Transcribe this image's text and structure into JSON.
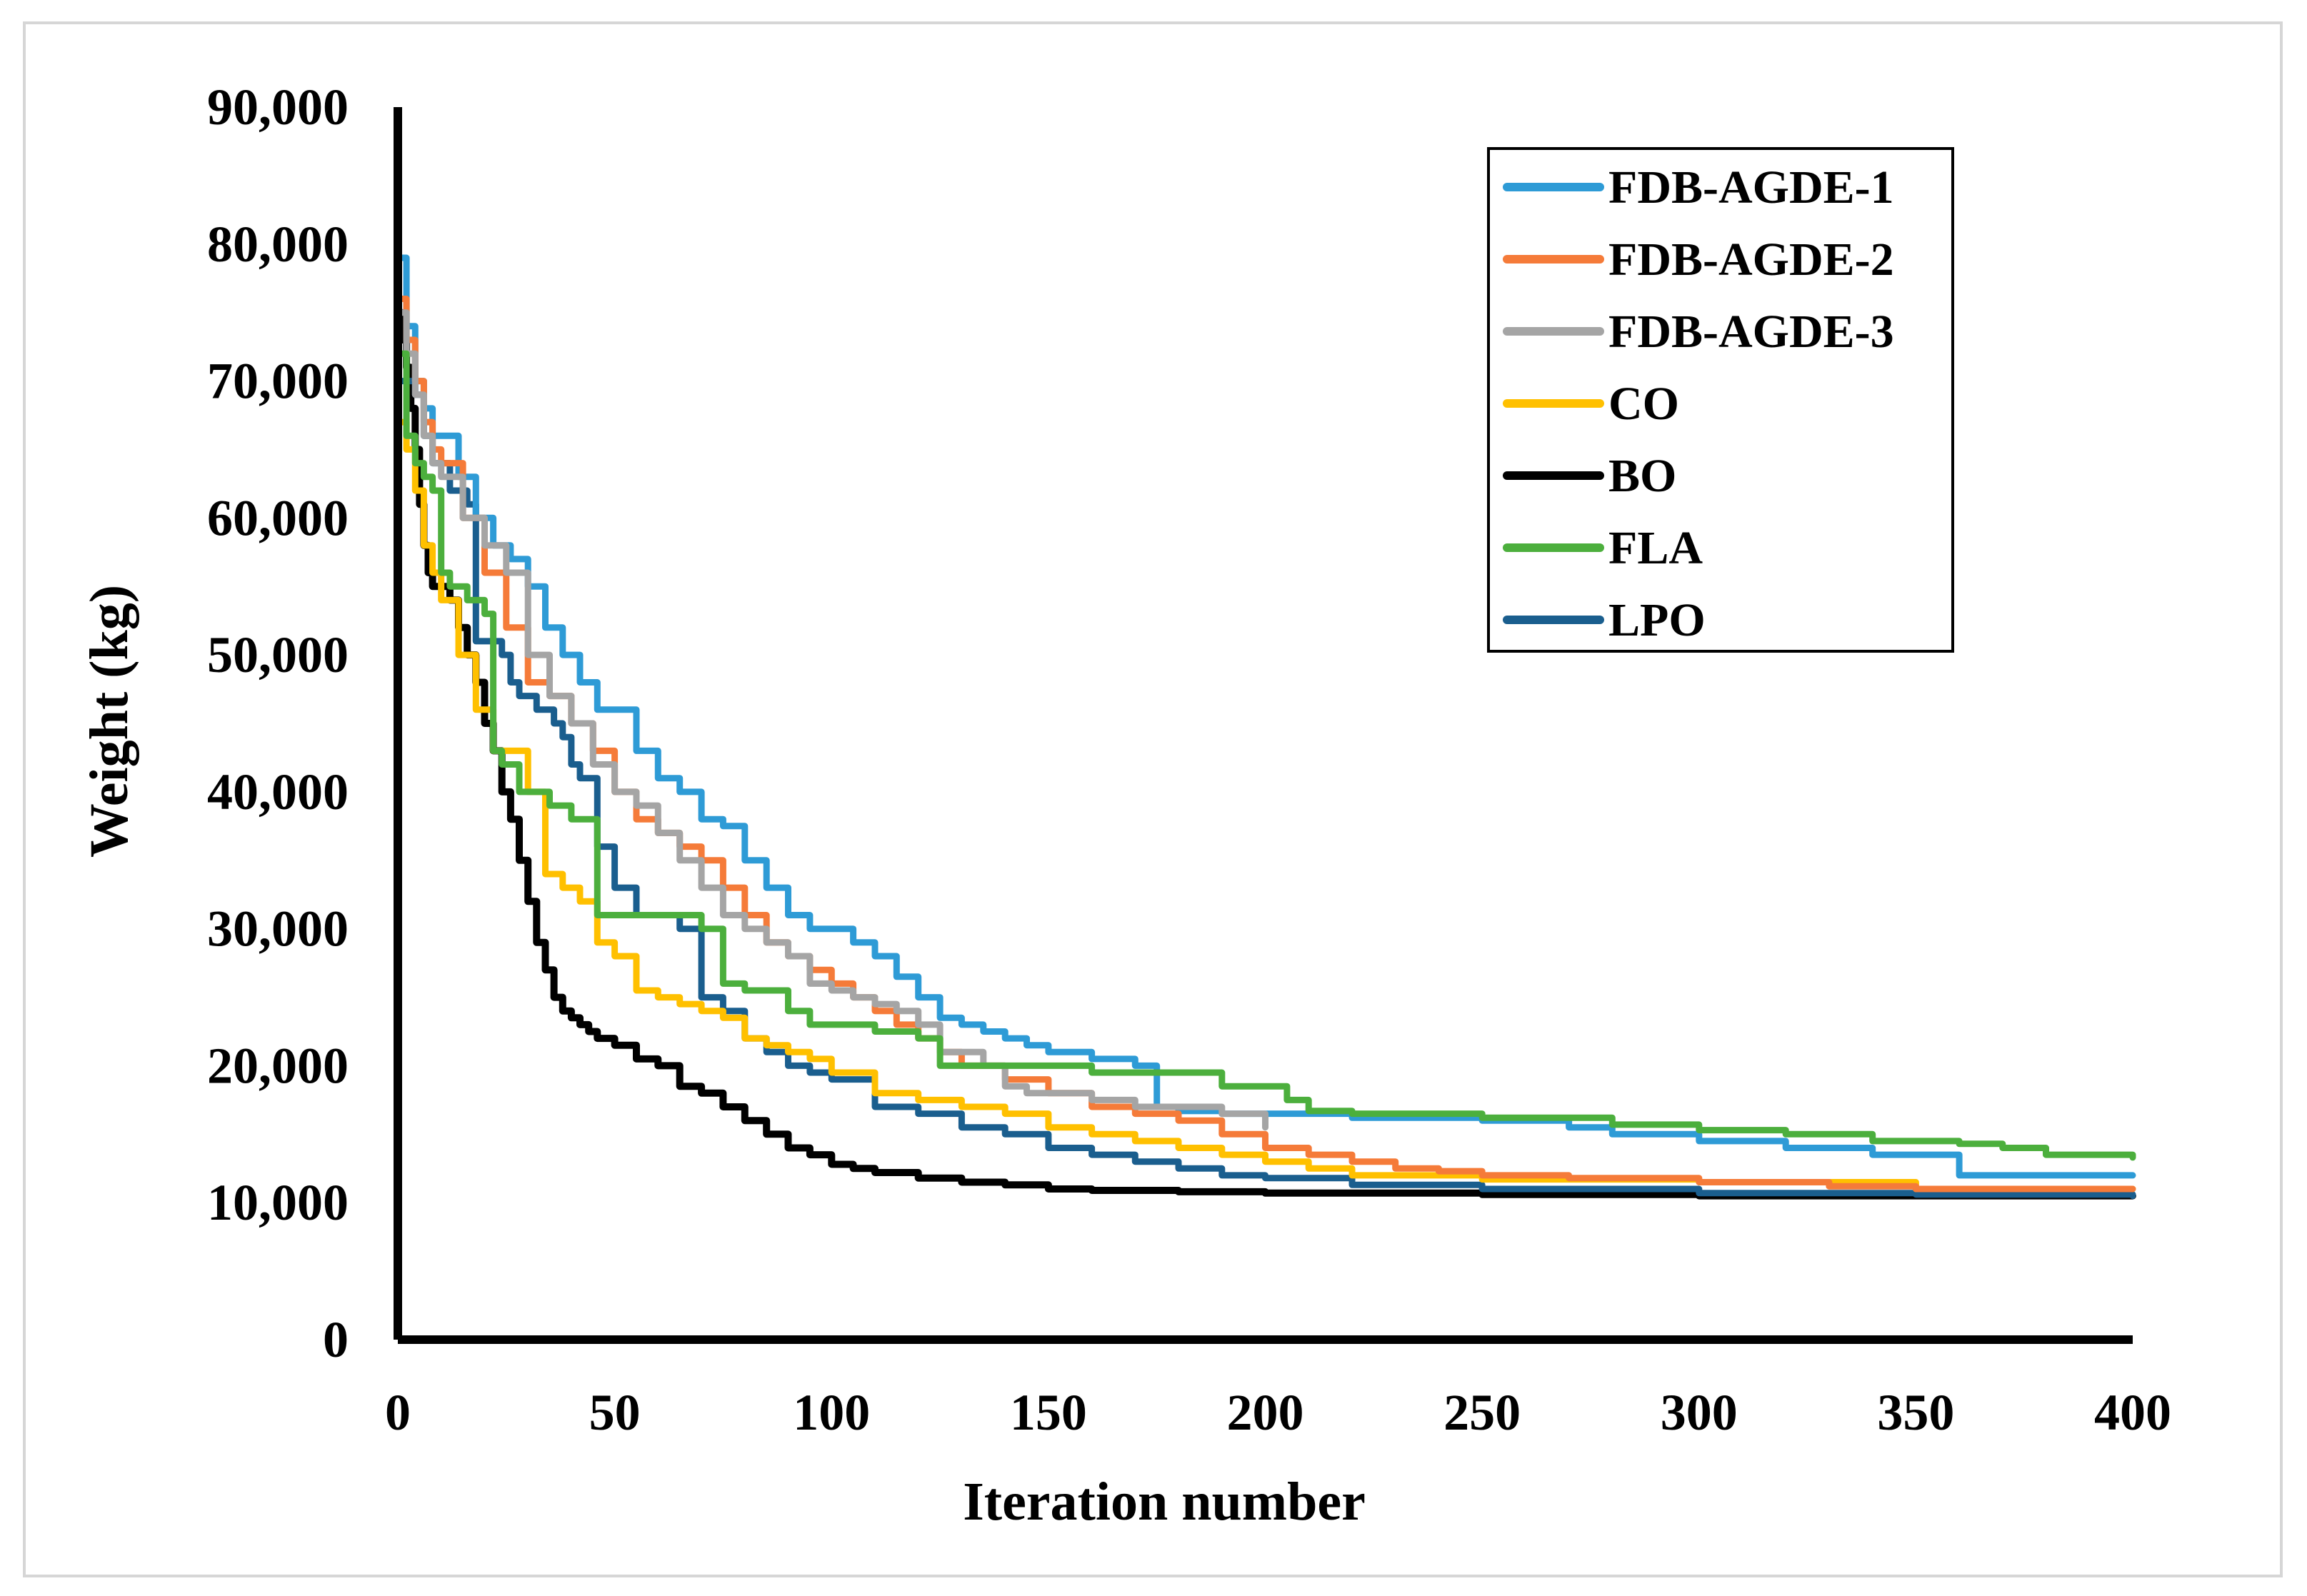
{
  "chart_data": {
    "type": "line",
    "title": "",
    "xlabel": "Iteration number",
    "ylabel": "Weight (kg)",
    "xlim": [
      0,
      400
    ],
    "ylim": [
      0,
      90000
    ],
    "xticks": [
      0,
      50,
      100,
      150,
      200,
      250,
      300,
      350,
      400
    ],
    "yticks": [
      0,
      10000,
      20000,
      30000,
      40000,
      50000,
      60000,
      70000,
      80000,
      90000
    ],
    "xtick_labels": [
      "0",
      "50",
      "100",
      "150",
      "200",
      "250",
      "300",
      "350",
      "400"
    ],
    "ytick_labels": [
      "0",
      "10,000",
      "20,000",
      "30,000",
      "40,000",
      "50,000",
      "60,000",
      "70,000",
      "80,000",
      "90,000"
    ],
    "grid": false,
    "legend_position": "top-right",
    "series": [
      {
        "name": "FDB-AGDE-1",
        "color": "#2E9BD6",
        "x": [
          0,
          2,
          4,
          6,
          8,
          10,
          14,
          18,
          22,
          26,
          30,
          34,
          38,
          42,
          46,
          50,
          55,
          60,
          65,
          70,
          75,
          80,
          85,
          90,
          95,
          100,
          105,
          110,
          115,
          120,
          125,
          130,
          135,
          140,
          145,
          150,
          155,
          160,
          165,
          170,
          175,
          180,
          190,
          200,
          220,
          250,
          270,
          280,
          300,
          320,
          340,
          360,
          380,
          400
        ],
        "values": [
          79000,
          74000,
          70000,
          68000,
          66000,
          66000,
          63000,
          60000,
          58000,
          57000,
          55000,
          52000,
          50000,
          48000,
          46000,
          46000,
          43000,
          41000,
          40000,
          38000,
          37500,
          35000,
          33000,
          31000,
          30000,
          30000,
          29000,
          28000,
          26500,
          25000,
          23500,
          23000,
          22500,
          22000,
          21500,
          21000,
          21000,
          20500,
          20500,
          20000,
          17000,
          16700,
          16500,
          16500,
          16200,
          16000,
          15500,
          15000,
          14500,
          14000,
          13500,
          12000,
          12000,
          12000
        ]
      },
      {
        "name": "FDB-AGDE-2",
        "color": "#F57B39",
        "x": [
          0,
          2,
          4,
          6,
          8,
          10,
          15,
          20,
          25,
          30,
          35,
          40,
          45,
          50,
          55,
          60,
          65,
          70,
          75,
          80,
          85,
          90,
          95,
          100,
          105,
          110,
          115,
          120,
          125,
          130,
          140,
          150,
          160,
          170,
          180,
          190,
          200,
          210,
          220,
          230,
          240,
          250,
          270,
          300,
          330,
          350,
          370,
          400
        ],
        "values": [
          76000,
          73000,
          70000,
          67000,
          65000,
          64000,
          60000,
          56000,
          52000,
          48000,
          47000,
          45000,
          43000,
          40000,
          38000,
          37000,
          36000,
          35000,
          33000,
          31000,
          29000,
          28000,
          27000,
          26000,
          25000,
          24000,
          23000,
          22000,
          21000,
          20000,
          19000,
          18000,
          17000,
          16500,
          16000,
          15000,
          14000,
          13500,
          13000,
          12500,
          12300,
          12000,
          11800,
          11500,
          11200,
          11000,
          11000,
          11000
        ]
      },
      {
        "name": "FDB-AGDE-3",
        "color": "#A5A5A5",
        "x": [
          0,
          2,
          4,
          6,
          8,
          10,
          15,
          20,
          25,
          30,
          35,
          40,
          45,
          50,
          55,
          60,
          65,
          70,
          75,
          80,
          85,
          90,
          95,
          100,
          105,
          110,
          115,
          120,
          125,
          130,
          135,
          140,
          145,
          150,
          160,
          170,
          180,
          190,
          200
        ],
        "values": [
          75000,
          72000,
          69000,
          66000,
          64000,
          63000,
          60000,
          58000,
          56000,
          50000,
          47000,
          45000,
          42000,
          40000,
          39000,
          37000,
          35000,
          33000,
          31000,
          30000,
          29000,
          28000,
          26000,
          25500,
          25000,
          24500,
          24000,
          23000,
          21000,
          21000,
          20000,
          18500,
          18000,
          18000,
          17500,
          17000,
          17000,
          16500,
          15500
        ]
      },
      {
        "name": "CO",
        "color": "#FFC000",
        "x": [
          0,
          2,
          4,
          6,
          8,
          10,
          14,
          18,
          22,
          26,
          30,
          34,
          38,
          42,
          46,
          50,
          55,
          60,
          65,
          70,
          75,
          80,
          85,
          90,
          95,
          100,
          110,
          120,
          130,
          140,
          150,
          160,
          170,
          180,
          190,
          200,
          210,
          220,
          250,
          300,
          350,
          400
        ],
        "values": [
          67000,
          65000,
          62000,
          58000,
          56000,
          54000,
          50000,
          46000,
          43000,
          43000,
          40000,
          34000,
          33000,
          32000,
          29000,
          28000,
          25500,
          25000,
          24500,
          24000,
          23500,
          22000,
          21500,
          21000,
          20500,
          19500,
          18000,
          17500,
          17000,
          16500,
          15500,
          15000,
          14500,
          14000,
          13500,
          13000,
          12500,
          12000,
          11700,
          11500,
          11000,
          11000
        ]
      },
      {
        "name": "BO",
        "color": "#000000",
        "x": [
          0,
          1,
          2,
          3,
          4,
          5,
          6,
          7,
          8,
          10,
          12,
          14,
          16,
          18,
          20,
          22,
          24,
          26,
          28,
          30,
          32,
          34,
          36,
          38,
          40,
          42,
          44,
          46,
          48,
          50,
          55,
          60,
          65,
          70,
          75,
          80,
          85,
          90,
          95,
          100,
          105,
          110,
          120,
          130,
          140,
          150,
          160,
          180,
          200,
          250,
          300,
          350,
          400
        ],
        "values": [
          75000,
          73000,
          71000,
          68000,
          65000,
          61000,
          58000,
          56000,
          55000,
          55000,
          54000,
          52000,
          50000,
          48000,
          45000,
          43000,
          40000,
          38000,
          35000,
          32000,
          29000,
          27000,
          25000,
          24000,
          23500,
          23000,
          22500,
          22000,
          22000,
          21500,
          20500,
          20000,
          18500,
          18000,
          17000,
          16000,
          15000,
          14000,
          13500,
          12800,
          12500,
          12200,
          11800,
          11500,
          11300,
          11000,
          10900,
          10800,
          10700,
          10600,
          10500,
          10500,
          10500
        ]
      },
      {
        "name": "FLA",
        "color": "#4CAF3D",
        "x": [
          0,
          2,
          4,
          6,
          8,
          10,
          12,
          14,
          16,
          18,
          20,
          22,
          24,
          26,
          28,
          30,
          35,
          40,
          45,
          46,
          50,
          55,
          60,
          65,
          70,
          75,
          78,
          80,
          85,
          90,
          95,
          100,
          110,
          120,
          125,
          130,
          140,
          150,
          160,
          170,
          180,
          190,
          200,
          205,
          210,
          220,
          250,
          280,
          300,
          320,
          340,
          360,
          370,
          380,
          400
        ],
        "values": [
          72000,
          66000,
          64000,
          63000,
          62000,
          56000,
          55000,
          55000,
          54000,
          54000,
          53000,
          43000,
          42000,
          42000,
          40000,
          40000,
          39000,
          38000,
          38000,
          31000,
          31000,
          31000,
          31000,
          31000,
          30000,
          26000,
          26000,
          25500,
          25500,
          24000,
          23000,
          23000,
          22500,
          22000,
          20000,
          20000,
          20000,
          20000,
          19500,
          19500,
          19500,
          18500,
          18500,
          17500,
          16700,
          16500,
          16200,
          15700,
          15300,
          15000,
          14500,
          14300,
          14000,
          13500,
          13300
        ]
      },
      {
        "name": "LPO",
        "color": "#1A5E8E",
        "x": [
          0,
          2,
          4,
          6,
          8,
          10,
          12,
          14,
          16,
          18,
          20,
          22,
          24,
          26,
          28,
          30,
          32,
          34,
          36,
          38,
          40,
          42,
          44,
          46,
          48,
          50,
          55,
          60,
          65,
          70,
          75,
          80,
          85,
          90,
          95,
          100,
          110,
          120,
          130,
          140,
          150,
          160,
          170,
          180,
          190,
          200,
          220,
          250,
          300,
          350,
          400
        ],
        "values": [
          70000,
          70000,
          69000,
          66000,
          64000,
          64000,
          62000,
          62000,
          61000,
          51000,
          51000,
          51000,
          50000,
          48000,
          47000,
          47000,
          46000,
          46000,
          45000,
          44000,
          42000,
          41000,
          41000,
          36000,
          36000,
          33000,
          31000,
          31000,
          30000,
          25000,
          24000,
          22000,
          21000,
          20000,
          19500,
          19000,
          17000,
          16500,
          15500,
          15000,
          14000,
          13500,
          13000,
          12500,
          12000,
          11800,
          11300,
          11000,
          10700,
          10600,
          10500
        ]
      }
    ]
  }
}
